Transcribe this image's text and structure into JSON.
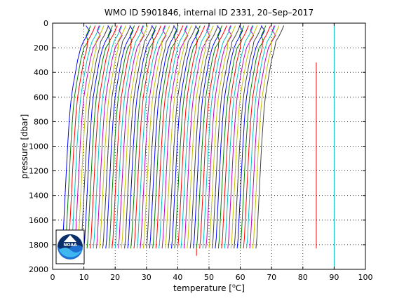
{
  "chart_data": {
    "type": "line",
    "title": "WMO ID 5901846, internal ID 2331, 20–Sep–2017",
    "xlabel_prefix": "temperature [",
    "xlabel_degree": "o",
    "xlabel_suffix": "C]",
    "ylabel": "pressure [dbar]",
    "xlim": [
      0,
      100
    ],
    "ylim": [
      0,
      2000
    ],
    "y_reversed": true,
    "grid": true,
    "xticks": [
      0,
      10,
      20,
      30,
      40,
      50,
      60,
      70,
      80,
      90,
      100
    ],
    "yticks": [
      0,
      200,
      400,
      600,
      800,
      1000,
      1200,
      1400,
      1600,
      1800,
      2000
    ],
    "series_colors": [
      "#0000ff",
      "#007f00",
      "#ff0000",
      "#00bfbf",
      "#bf00bf",
      "#bfbf00",
      "#3f3f3f"
    ],
    "profile_offsets": [
      3,
      4,
      5,
      6,
      7,
      8,
      9,
      10,
      11,
      12,
      13,
      14,
      15,
      16,
      17,
      18,
      19,
      20,
      21,
      22,
      23,
      24,
      25,
      26,
      27,
      28,
      29,
      30,
      31,
      32,
      33,
      34,
      35,
      36,
      37,
      38,
      39,
      40,
      41,
      42,
      43,
      44,
      45,
      46,
      47,
      48,
      49,
      50,
      51,
      52,
      53,
      54,
      55,
      56,
      57,
      58,
      59,
      60,
      61,
      62,
      63,
      64,
      65
    ],
    "profile_shape": {
      "pressure": [
        20,
        60,
        100,
        150,
        200,
        300,
        400,
        500,
        600,
        700,
        800,
        1000,
        1200,
        1400,
        1600,
        1750,
        1830
      ],
      "temp_delta": [
        8.4,
        8.0,
        7.5,
        6.6,
        6.0,
        5.0,
        4.3,
        3.6,
        3.0,
        2.6,
        2.3,
        1.8,
        1.4,
        1.0,
        0.6,
        0.3,
        0.0
      ]
    },
    "extra_lines": [
      {
        "color": "#ff0000",
        "x": 84.3,
        "y_top": 320,
        "y_bottom": 1830
      },
      {
        "color": "#00bfbf",
        "x": 90.0,
        "y_top": 0,
        "y_bottom": 2000
      },
      {
        "color": "#ff0000",
        "x": 46.0,
        "y_top": 1830,
        "y_bottom": 1890
      }
    ]
  },
  "logo": {
    "text": "NOAA"
  }
}
